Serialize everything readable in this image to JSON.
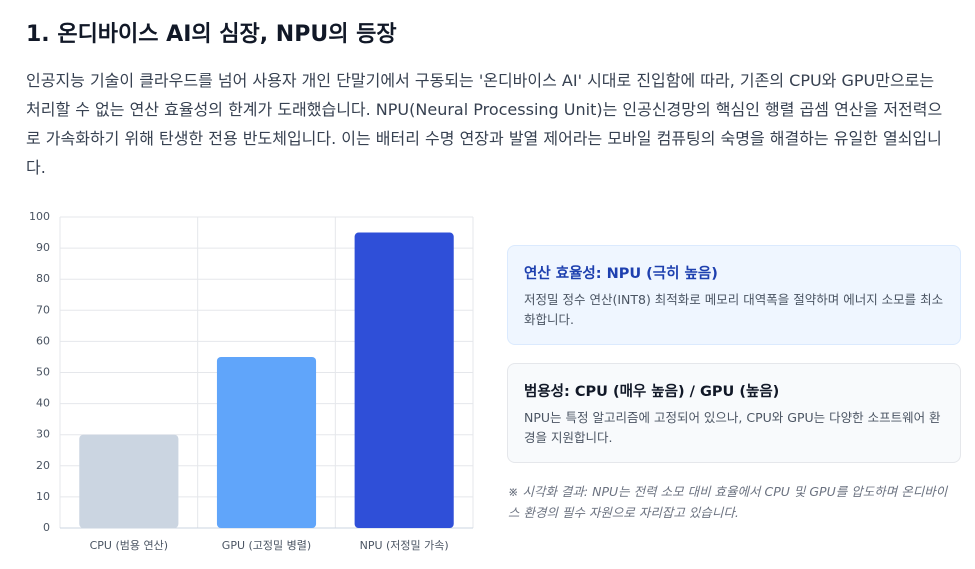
{
  "heading": "1. 온디바이스 AI의 심장, NPU의 등장",
  "paragraph": "인공지능 기술이 클라우드를 넘어 사용자 개인 단말기에서 구동되는 '온디바이스 AI' 시대로 진입함에 따라, 기존의 CPU와 GPU만으로는 처리할 수 없는 연산 효율성의 한계가 도래했습니다. NPU(Neural Processing Unit)는 인공신경망의 핵심인 행렬 곱셈 연산을 저전력으로 가속화하기 위해 탄생한 전용 반도체입니다. 이는 배터리 수명 연장과 발열 제어라는 모바일 컴퓨팅의 숙명을 해결하는 유일한 열쇠입니다.",
  "chart_data": {
    "type": "bar",
    "categories": [
      "CPU (범용 연산)",
      "GPU (고정밀 병렬)",
      "NPU (저정밀 가속)"
    ],
    "values": [
      30,
      55,
      95
    ],
    "colors": [
      "#cbd5e1",
      "#60a5fa",
      "#2f4fd8"
    ],
    "ylim": [
      0,
      100
    ],
    "yticks": [
      0,
      10,
      20,
      30,
      40,
      50,
      60,
      70,
      80,
      90,
      100
    ],
    "grid": true
  },
  "cards": [
    {
      "title": "연산 효율성: NPU (극히 높음)",
      "text": "저정밀 정수 연산(INT8) 최적화로 메모리 대역폭을 절약하며 에너지 소모를 최소화합니다."
    },
    {
      "title": "범용성: CPU (매우 높음) / GPU (높음)",
      "text": "NPU는 특정 알고리즘에 고정되어 있으나, CPU와 GPU는 다양한 소프트웨어 환경을 지원합니다."
    }
  ],
  "note": "※ 시각화 결과: NPU는 전력 소모 대비 효율에서 CPU 및 GPU를 압도하며 온디바이스 환경의 필수 자원으로 자리잡고 있습니다."
}
